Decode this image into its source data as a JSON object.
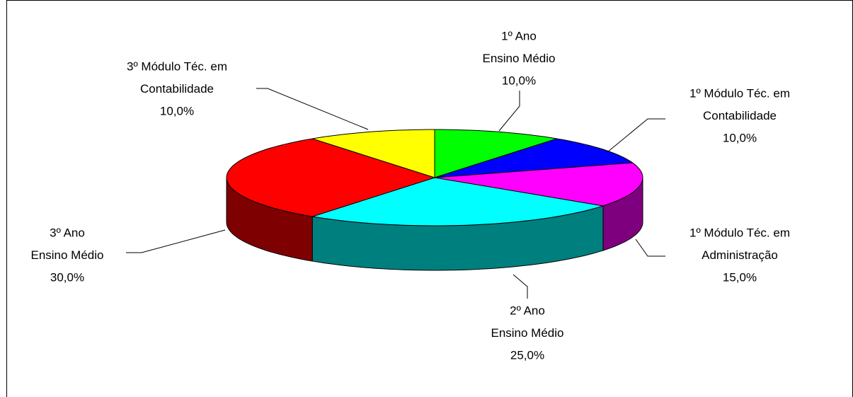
{
  "chart_data": {
    "type": "pie3d",
    "categories": [
      [
        "1º Ano",
        "Ensino Médio"
      ],
      [
        "1º Módulo Téc. em",
        "Contabilidade"
      ],
      [
        "1º Módulo Téc. em",
        "Administração"
      ],
      [
        "2º Ano",
        "Ensino Médio"
      ],
      [
        "3º Ano",
        "Ensino Médio"
      ],
      [
        "3º Módulo Téc. em",
        "Contabilidade"
      ]
    ],
    "values": [
      10,
      10,
      15,
      25,
      30,
      10
    ],
    "value_labels": [
      "10,0%",
      "10,0%",
      "15,0%",
      "25,0%",
      "30,0%",
      "10,0%"
    ],
    "colors": [
      "#00ff00",
      "#0000ff",
      "#ff00ff",
      "#00ffff",
      "#ff0000",
      "#ffff00"
    ]
  }
}
